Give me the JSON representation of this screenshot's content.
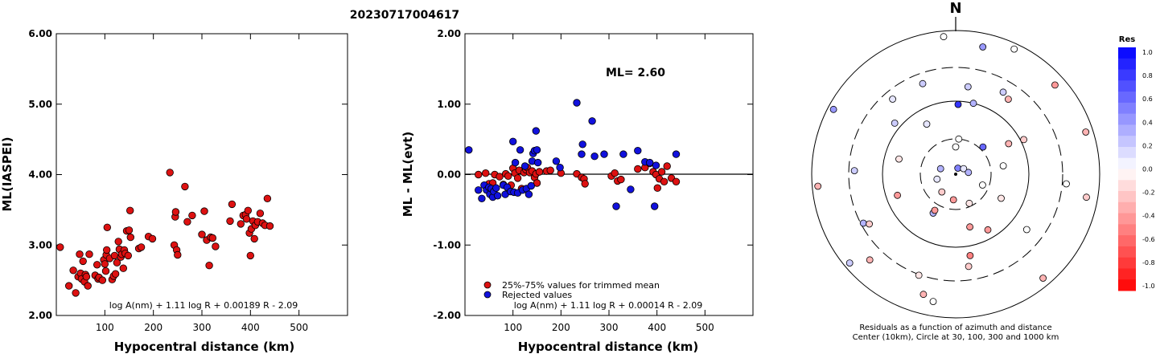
{
  "page": {
    "title": "20230717004617"
  },
  "chart_data": [
    {
      "type": "scatter",
      "ylabel": "ML(IASPEI)",
      "xlabel": "Hypocentral distance (km)",
      "xlim": [
        0,
        600
      ],
      "ylim": [
        2.0,
        6.0
      ],
      "x_ticks": [
        "100",
        "200",
        "300",
        "400",
        "500"
      ],
      "y_ticks": [
        "2.00",
        "3.00",
        "4.00",
        "5.00",
        "6.00"
      ],
      "formula": "log A(nm) + 1.11 log R + 0.00189 R - 2.09",
      "colors": {
        "marker": "#dd1111"
      },
      "points": [
        [
          8,
          2.97
        ],
        [
          26,
          2.42
        ],
        [
          35,
          2.64
        ],
        [
          40,
          2.32
        ],
        [
          45,
          2.55
        ],
        [
          48,
          2.87
        ],
        [
          50,
          2.6
        ],
        [
          52,
          2.52
        ],
        [
          55,
          2.77
        ],
        [
          58,
          2.48
        ],
        [
          60,
          2.58
        ],
        [
          62,
          2.55
        ],
        [
          65,
          2.42
        ],
        [
          68,
          2.87
        ],
        [
          80,
          2.57
        ],
        [
          84,
          2.72
        ],
        [
          86,
          2.52
        ],
        [
          88,
          2.54
        ],
        [
          95,
          2.5
        ],
        [
          98,
          2.79
        ],
        [
          100,
          2.73
        ],
        [
          102,
          2.63
        ],
        [
          103,
          2.86
        ],
        [
          104,
          2.93
        ],
        [
          105,
          3.25
        ],
        [
          110,
          2.81
        ],
        [
          115,
          2.51
        ],
        [
          118,
          2.56
        ],
        [
          120,
          2.85
        ],
        [
          122,
          2.59
        ],
        [
          125,
          2.75
        ],
        [
          128,
          3.05
        ],
        [
          130,
          2.94
        ],
        [
          133,
          2.83
        ],
        [
          135,
          2.87
        ],
        [
          138,
          2.67
        ],
        [
          140,
          2.93
        ],
        [
          142,
          2.88
        ],
        [
          145,
          3.2
        ],
        [
          148,
          2.85
        ],
        [
          150,
          3.21
        ],
        [
          152,
          3.49
        ],
        [
          153,
          3.11
        ],
        [
          170,
          2.95
        ],
        [
          175,
          2.97
        ],
        [
          190,
          3.12
        ],
        [
          198,
          3.09
        ],
        [
          234,
          4.03
        ],
        [
          243,
          3.0
        ],
        [
          245,
          3.4
        ],
        [
          246,
          3.47
        ],
        [
          248,
          2.93
        ],
        [
          250,
          2.86
        ],
        [
          265,
          3.83
        ],
        [
          270,
          3.33
        ],
        [
          280,
          3.42
        ],
        [
          300,
          3.15
        ],
        [
          305,
          3.48
        ],
        [
          310,
          3.07
        ],
        [
          315,
          2.71
        ],
        [
          318,
          3.11
        ],
        [
          322,
          3.1
        ],
        [
          328,
          2.98
        ],
        [
          358,
          3.34
        ],
        [
          362,
          3.58
        ],
        [
          380,
          3.3
        ],
        [
          385,
          3.42
        ],
        [
          390,
          3.43
        ],
        [
          392,
          3.37
        ],
        [
          395,
          3.49
        ],
        [
          398,
          3.17
        ],
        [
          400,
          2.85
        ],
        [
          402,
          3.23
        ],
        [
          405,
          3.34
        ],
        [
          408,
          3.09
        ],
        [
          410,
          3.28
        ],
        [
          415,
          3.33
        ],
        [
          420,
          3.45
        ],
        [
          425,
          3.31
        ],
        [
          430,
          3.28
        ],
        [
          435,
          3.66
        ],
        [
          440,
          3.27
        ]
      ]
    },
    {
      "type": "scatter",
      "ylabel": "ML - ML(evt)",
      "xlabel": "Hypocentral distance (km)",
      "xlim": [
        0,
        600
      ],
      "ylim": [
        -2.0,
        2.0
      ],
      "x_ticks": [
        "100",
        "200",
        "300",
        "400",
        "500"
      ],
      "y_ticks": [
        "-2.00",
        "-1.00",
        "0.00",
        "1.00",
        "2.00"
      ],
      "annotation": "ML= 2.60",
      "formula": "log A(nm) + 1.11 log R + 0.00014 R - 2.09",
      "legend": [
        "25%-75% values for trimmed mean",
        "Rejected values"
      ],
      "colors": {
        "trimmed": "#dd1111",
        "rejected": "#1111dd"
      },
      "series": [
        {
          "name": "25%-75% values for trimmed mean",
          "points": [
            [
              28,
              0.0
            ],
            [
              43,
              0.02
            ],
            [
              50,
              -0.13
            ],
            [
              58,
              -0.12
            ],
            [
              62,
              0.0
            ],
            [
              72,
              -0.03
            ],
            [
              80,
              -0.14
            ],
            [
              85,
              0.01
            ],
            [
              90,
              -0.02
            ],
            [
              96,
              -0.15
            ],
            [
              100,
              0.09
            ],
            [
              104,
              0.02
            ],
            [
              110,
              -0.05
            ],
            [
              113,
              0.06
            ],
            [
              118,
              -0.2
            ],
            [
              123,
              0.03
            ],
            [
              127,
              0.07
            ],
            [
              130,
              0.1
            ],
            [
              135,
              0.03
            ],
            [
              140,
              0.05
            ],
            [
              145,
              -0.04
            ],
            [
              148,
              0.01
            ],
            [
              150,
              -0.12
            ],
            [
              155,
              0.04
            ],
            [
              170,
              0.05
            ],
            [
              178,
              0.06
            ],
            [
              200,
              0.02
            ],
            [
              233,
              0.01
            ],
            [
              243,
              -0.04
            ],
            [
              248,
              -0.06
            ],
            [
              250,
              -0.13
            ],
            [
              305,
              -0.02
            ],
            [
              312,
              0.02
            ],
            [
              318,
              -0.09
            ],
            [
              325,
              -0.07
            ],
            [
              360,
              0.08
            ],
            [
              375,
              0.1
            ],
            [
              385,
              0.16
            ],
            [
              392,
              0.04
            ],
            [
              398,
              0.0
            ],
            [
              401,
              -0.19
            ],
            [
              405,
              -0.06
            ],
            [
              410,
              0.04
            ],
            [
              415,
              -0.1
            ],
            [
              421,
              0.12
            ],
            [
              430,
              -0.05
            ],
            [
              440,
              -0.1
            ]
          ]
        },
        {
          "name": "Rejected values",
          "points": [
            [
              8,
              0.35
            ],
            [
              28,
              -0.22
            ],
            [
              35,
              -0.34
            ],
            [
              40,
              -0.15
            ],
            [
              45,
              -0.22
            ],
            [
              50,
              -0.18
            ],
            [
              52,
              -0.28
            ],
            [
              55,
              -0.2
            ],
            [
              58,
              -0.32
            ],
            [
              60,
              -0.24
            ],
            [
              65,
              -0.19
            ],
            [
              68,
              -0.3
            ],
            [
              80,
              -0.15
            ],
            [
              84,
              -0.28
            ],
            [
              88,
              -0.18
            ],
            [
              95,
              -0.24
            ],
            [
              100,
              0.47
            ],
            [
              102,
              -0.25
            ],
            [
              105,
              0.17
            ],
            [
              110,
              -0.26
            ],
            [
              115,
              0.35
            ],
            [
              120,
              -0.22
            ],
            [
              125,
              0.12
            ],
            [
              128,
              -0.2
            ],
            [
              133,
              -0.28
            ],
            [
              138,
              -0.16
            ],
            [
              140,
              0.19
            ],
            [
              142,
              0.3
            ],
            [
              145,
              0.34
            ],
            [
              148,
              0.62
            ],
            [
              150,
              0.35
            ],
            [
              152,
              0.17
            ],
            [
              190,
              0.19
            ],
            [
              198,
              0.1
            ],
            [
              233,
              1.02
            ],
            [
              243,
              0.29
            ],
            [
              245,
              0.43
            ],
            [
              265,
              0.76
            ],
            [
              270,
              0.26
            ],
            [
              290,
              0.29
            ],
            [
              315,
              -0.45
            ],
            [
              330,
              0.29
            ],
            [
              345,
              -0.21
            ],
            [
              360,
              0.34
            ],
            [
              375,
              0.18
            ],
            [
              385,
              0.17
            ],
            [
              395,
              -0.45
            ],
            [
              398,
              0.13
            ],
            [
              440,
              0.29
            ]
          ]
        }
      ]
    },
    {
      "type": "polar",
      "title": "N",
      "caption_lines": [
        "Residuals as a function of azimuth and distance",
        "Center (10km), Circle at 30, 100, 300 and 1000 km"
      ],
      "colorbar": {
        "title": "Res",
        "ticks": [
          "1.0",
          "0.8",
          "0.6",
          "0.4",
          "0.2",
          "0.0",
          "-0.2",
          "-0.4",
          "-0.6",
          "-0.8",
          "-1.0"
        ]
      },
      "colors": {
        "positive": "#0000ff",
        "negative": "#ff0000",
        "zero": "#ffffff"
      },
      "points": [
        [
          0,
          0.0
        ],
        [
          2,
          0.8
        ],
        [
          8,
          0.2
        ],
        [
          12,
          0.4
        ],
        [
          20,
          0.5
        ],
        [
          14,
          0.3
        ],
        [
          35,
          -0.3
        ],
        [
          48,
          -0.4
        ],
        [
          55,
          0.1
        ],
        [
          63,
          -0.2
        ],
        [
          30,
          0.2
        ],
        [
          72,
          -0.3
        ],
        [
          82,
          0.3
        ],
        [
          -50,
          0.2
        ],
        [
          -40,
          0.1
        ],
        [
          -62,
          0.4
        ],
        [
          -70,
          0.3
        ],
        [
          -75,
          -0.1
        ],
        [
          -88,
          0.2
        ],
        [
          -95,
          -0.3
        ],
        [
          -105,
          0.1
        ],
        [
          -110,
          -0.4
        ],
        [
          -118,
          0.3
        ],
        [
          -130,
          0.2
        ],
        [
          -142,
          -0.2
        ],
        [
          -150,
          0.3
        ],
        [
          -160,
          -0.1
        ],
        [
          -170,
          0.0
        ],
        [
          -175,
          -0.4
        ],
        [
          80,
          0.0
        ],
        [
          95,
          0.0
        ],
        [
          100,
          -0.2
        ],
        [
          112,
          0.0
        ],
        [
          118,
          -0.1
        ],
        [
          128,
          0.0
        ],
        [
          140,
          -0.3
        ],
        [
          155,
          -0.1
        ],
        [
          165,
          -0.4
        ],
        [
          172,
          -0.2
        ],
        [
          -5,
          0.0
        ],
        [
          5,
          0.0
        ],
        [
          -30,
          0.1
        ],
        [
          -20,
          0.2
        ],
        [
          25,
          0.0
        ],
        [
          45,
          0.6
        ],
        [
          60,
          -0.3
        ],
        [
          -120,
          -0.2
        ],
        [
          -135,
          -0.3
        ],
        [
          -150,
          -0.4
        ],
        [
          150,
          -0.4
        ],
        [
          170,
          -0.5
        ],
        [
          -165,
          -0.3
        ]
      ]
    }
  ]
}
